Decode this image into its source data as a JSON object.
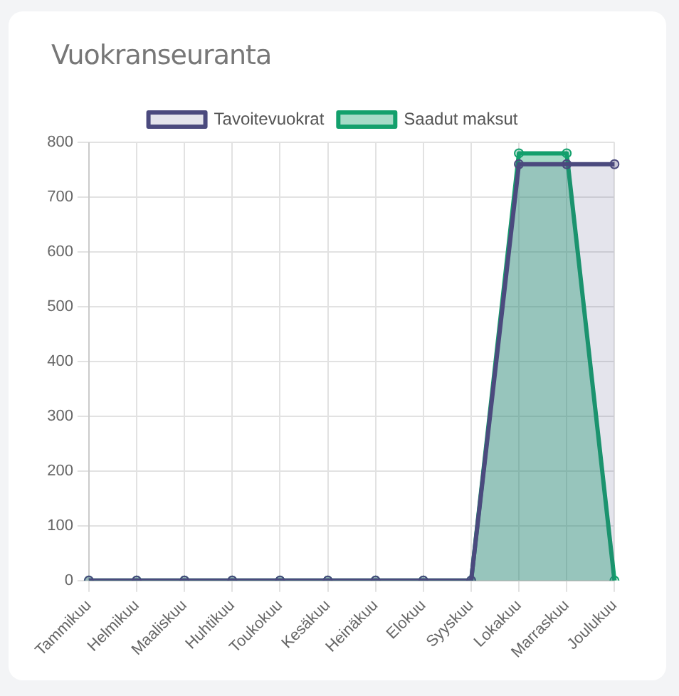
{
  "chart_data": {
    "type": "area",
    "title": "Vuokranseuranta",
    "categories": [
      "Tammikuu",
      "Helmikuu",
      "Maaliskuu",
      "Huhtikuu",
      "Toukokuu",
      "Kesäkuu",
      "Heinäkuu",
      "Elokuu",
      "Syyskuu",
      "Lokakuu",
      "Marraskuu",
      "Joulukuu"
    ],
    "series": [
      {
        "name": "Tavoitevuokrat",
        "color": "#4b4a7e",
        "values": [
          0,
          0,
          0,
          0,
          0,
          0,
          0,
          0,
          0,
          760,
          760,
          760
        ]
      },
      {
        "name": "Saadut maksut",
        "color": "#13a06c",
        "values": [
          0,
          0,
          0,
          0,
          0,
          0,
          0,
          0,
          0,
          780,
          780,
          0
        ]
      }
    ],
    "ylim": [
      0,
      800
    ],
    "yticks": [
      0,
      100,
      200,
      300,
      400,
      500,
      600,
      700,
      800
    ],
    "grid": true,
    "legend": "top",
    "marker": "circle",
    "line_style": "solid"
  }
}
